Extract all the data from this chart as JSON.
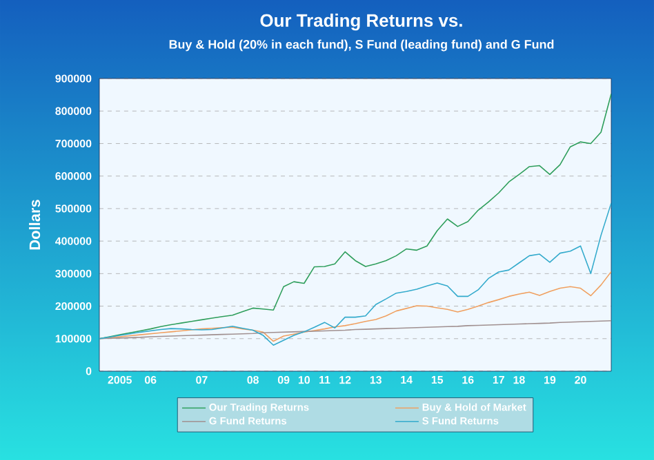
{
  "chart_data": {
    "type": "line",
    "title": "Our Trading Returns vs.",
    "subtitle": "Buy & Hold (20% in each fund), S Fund (leading fund) and G Fund",
    "ylabel": "Dollars",
    "categories": [
      null,
      null,
      "2005",
      null,
      null,
      "06",
      null,
      null,
      null,
      null,
      "07",
      null,
      null,
      null,
      null,
      "08",
      null,
      null,
      "09",
      null,
      "10",
      null,
      "11",
      null,
      "12",
      null,
      null,
      "13",
      null,
      null,
      "14",
      null,
      null,
      "15",
      null,
      null,
      "16",
      null,
      null,
      "17",
      null,
      "18",
      null,
      null,
      "19",
      null,
      null,
      "20",
      null,
      null,
      null
    ],
    "ylim": [
      0,
      900000
    ],
    "yticks": [
      0,
      100000,
      200000,
      300000,
      400000,
      500000,
      600000,
      700000,
      800000,
      900000
    ],
    "grid": "y",
    "legend": "bottom",
    "line_style": "solid",
    "series": [
      {
        "name": "Our Trading Returns",
        "color": "#2e9e5b",
        "values": [
          100000,
          106000,
          112000,
          118000,
          124000,
          130000,
          137000,
          143000,
          148000,
          153000,
          158000,
          163000,
          168000,
          172000,
          183000,
          194000,
          191000,
          188000,
          260000,
          275000,
          270000,
          321000,
          322000,
          330000,
          367000,
          340000,
          322000,
          330000,
          340000,
          355000,
          376000,
          372000,
          385000,
          432000,
          468000,
          445000,
          460000,
          495000,
          520000,
          548000,
          582000,
          605000,
          629000,
          632000,
          605000,
          635000,
          690000,
          705000,
          700000,
          735000,
          853000
        ]
      },
      {
        "name": "Buy & Hold of Market",
        "color": "#f0a060",
        "values": [
          100000,
          103000,
          106000,
          109000,
          112000,
          115000,
          118000,
          121000,
          124000,
          127000,
          130000,
          132000,
          134000,
          135000,
          130000,
          126000,
          120000,
          92000,
          108000,
          114000,
          120000,
          125000,
          130000,
          136000,
          140000,
          146000,
          153000,
          159000,
          170000,
          185000,
          193000,
          201000,
          200000,
          195000,
          190000,
          182000,
          190000,
          200000,
          211000,
          220000,
          230000,
          237000,
          243000,
          233000,
          245000,
          255000,
          260000,
          255000,
          232000,
          265000,
          306000
        ]
      },
      {
        "name": "G Fund Returns",
        "color": "#a09090",
        "values": [
          100000,
          101000,
          102000,
          103000,
          104000,
          106000,
          107000,
          108000,
          109000,
          110000,
          111000,
          112000,
          113000,
          114000,
          115000,
          116000,
          118000,
          119000,
          120000,
          121000,
          122000,
          123000,
          124000,
          125000,
          126000,
          128000,
          129000,
          130000,
          131000,
          132000,
          133000,
          134000,
          135000,
          136000,
          137000,
          138000,
          140000,
          141000,
          142000,
          143000,
          144000,
          145000,
          146000,
          147000,
          148000,
          150000,
          151000,
          152000,
          153000,
          154000,
          155000
        ]
      },
      {
        "name": "S Fund Returns",
        "color": "#33aacc",
        "values": [
          100000,
          105000,
          110000,
          115000,
          120000,
          124000,
          128000,
          131000,
          130000,
          128000,
          127000,
          128000,
          133000,
          138000,
          132000,
          126000,
          110000,
          80000,
          95000,
          110000,
          121000,
          135000,
          150000,
          133000,
          166000,
          166000,
          170000,
          205000,
          222000,
          240000,
          245000,
          252000,
          262000,
          271000,
          262000,
          230000,
          230000,
          250000,
          285000,
          305000,
          311000,
          333000,
          355000,
          360000,
          335000,
          363000,
          369000,
          385000,
          300000,
          418000,
          517000
        ]
      }
    ]
  }
}
